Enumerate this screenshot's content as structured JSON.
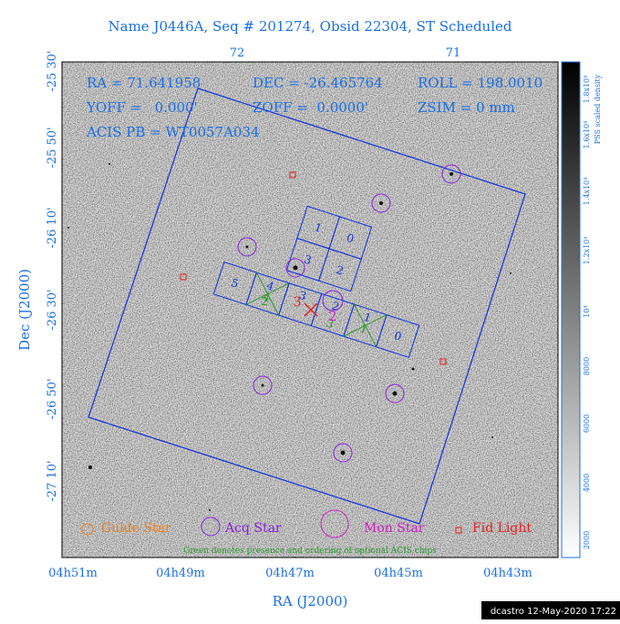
{
  "header": {
    "title": "Name J0446A, Seq # 201274, Obsid 22304, ST Scheduled"
  },
  "info": {
    "ra": "RA = 71.641958",
    "dec": "DEC = -26.465764",
    "roll": "ROLL = 198.0010",
    "yoff": "YOFF =   0.000'",
    "zoff": "ZOFF =  0.0000'",
    "zsim": "ZSIM = 0 mm",
    "acis": "ACIS PB = WT0057A034"
  },
  "axes": {
    "top_labels": [
      "72",
      "71"
    ],
    "left_labels": [
      "-25 30'",
      "-25 50'",
      "-26 10'",
      "-26 30'",
      "-26 50'",
      "-27 10'"
    ],
    "bottom_labels": [
      "04h51m",
      "04h49m",
      "04h47m",
      "04h45m",
      "04h43m"
    ],
    "x_title": "RA (J2000)",
    "y_title": "Dec (J2000)"
  },
  "colorbar": {
    "title": "PSS scaled density",
    "labels": [
      "2000",
      "4000",
      "6000",
      "8000",
      "10⁴",
      "1.2x10⁴",
      "1.4x10⁴",
      "1.6x10⁴",
      "1.8x10⁴"
    ]
  },
  "chips": {
    "i_array": [
      "1",
      "0",
      "3",
      "2"
    ],
    "s_array": [
      "5",
      "4",
      "3",
      "2",
      "1",
      "0"
    ],
    "optional": [
      "4",
      "2",
      "3",
      "1"
    ],
    "target": [
      "3",
      "2"
    ]
  },
  "legend": {
    "guide": "Guide Star",
    "acq": "Acq Star",
    "mon": "Mon Star",
    "fid": "Fid Light",
    "note": "Green denotes presence and ordering of optional ACIS chips"
  },
  "footer": {
    "stamp": "dcastro 12-May-2020 17:22"
  }
}
